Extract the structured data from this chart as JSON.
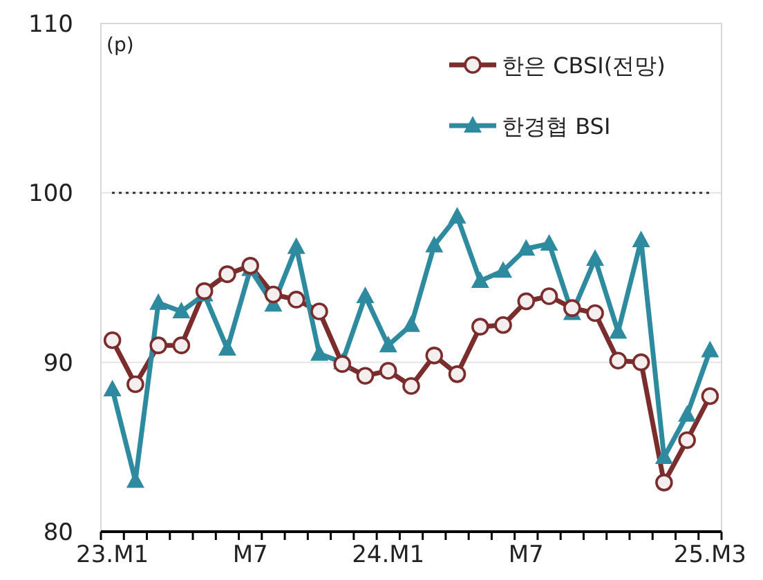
{
  "chart_data": {
    "type": "line",
    "ylabel": "(p)",
    "categories": [
      "23.M1",
      null,
      null,
      null,
      null,
      null,
      "M7",
      null,
      null,
      null,
      null,
      null,
      "24.M1",
      null,
      null,
      null,
      null,
      null,
      "M7",
      null,
      null,
      null,
      null,
      null,
      null,
      null,
      "25.M3"
    ],
    "series": [
      {
        "name": "한은 CBSI(전망)",
        "color": "#7b2c2c",
        "marker": "circle",
        "values": [
          91.3,
          88.7,
          91.0,
          91.0,
          94.2,
          95.2,
          95.7,
          94.0,
          93.7,
          93.0,
          89.9,
          89.2,
          89.5,
          88.6,
          90.4,
          89.3,
          92.1,
          92.2,
          93.6,
          93.9,
          93.2,
          92.9,
          90.1,
          90.0,
          82.9,
          85.4,
          88.0
        ]
      },
      {
        "name": "한경협 BSI",
        "color": "#2e8a9e",
        "marker": "triangle",
        "values": [
          88.4,
          83.0,
          93.5,
          93.0,
          94.0,
          90.8,
          95.5,
          93.4,
          96.8,
          90.5,
          90.0,
          93.9,
          91.0,
          92.2,
          96.9,
          98.6,
          94.8,
          95.4,
          96.7,
          97.0,
          92.9,
          96.1,
          91.8,
          97.2,
          84.4,
          86.9,
          90.7
        ]
      }
    ],
    "ylim": [
      80,
      110
    ],
    "yticks": [
      80,
      90,
      100,
      110
    ],
    "ref_lines": [
      {
        "axis": "y",
        "value": 100,
        "color": "#333333",
        "line_style": "dotted"
      }
    ],
    "grid": "y",
    "legend": "top right"
  }
}
